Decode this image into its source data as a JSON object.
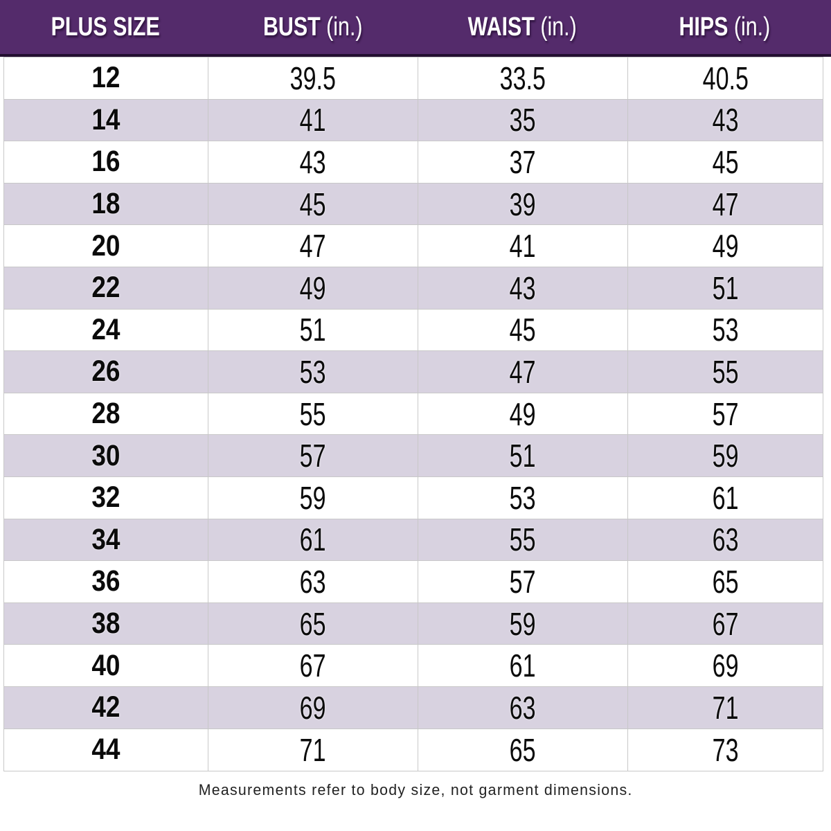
{
  "table": {
    "columns": [
      {
        "label": "PLUS SIZE",
        "unit": ""
      },
      {
        "label": "BUST",
        "unit": "(in.)"
      },
      {
        "label": "WAIST",
        "unit": "(in.)"
      },
      {
        "label": "HIPS",
        "unit": "(in.)"
      }
    ],
    "rows": [
      {
        "size": "12",
        "bust": "39.5",
        "waist": "33.5",
        "hips": "40.5"
      },
      {
        "size": "14",
        "bust": "41",
        "waist": "35",
        "hips": "43"
      },
      {
        "size": "16",
        "bust": "43",
        "waist": "37",
        "hips": "45"
      },
      {
        "size": "18",
        "bust": "45",
        "waist": "39",
        "hips": "47"
      },
      {
        "size": "20",
        "bust": "47",
        "waist": "41",
        "hips": "49"
      },
      {
        "size": "22",
        "bust": "49",
        "waist": "43",
        "hips": "51"
      },
      {
        "size": "24",
        "bust": "51",
        "waist": "45",
        "hips": "53"
      },
      {
        "size": "26",
        "bust": "53",
        "waist": "47",
        "hips": "55"
      },
      {
        "size": "28",
        "bust": "55",
        "waist": "49",
        "hips": "57"
      },
      {
        "size": "30",
        "bust": "57",
        "waist": "51",
        "hips": "59"
      },
      {
        "size": "32",
        "bust": "59",
        "waist": "53",
        "hips": "61"
      },
      {
        "size": "34",
        "bust": "61",
        "waist": "55",
        "hips": "63"
      },
      {
        "size": "36",
        "bust": "63",
        "waist": "57",
        "hips": "65"
      },
      {
        "size": "38",
        "bust": "65",
        "waist": "59",
        "hips": "67"
      },
      {
        "size": "40",
        "bust": "67",
        "waist": "61",
        "hips": "69"
      },
      {
        "size": "42",
        "bust": "69",
        "waist": "63",
        "hips": "71"
      },
      {
        "size": "44",
        "bust": "71",
        "waist": "65",
        "hips": "73"
      }
    ]
  },
  "footnote": "Measurements refer to body size, not garment dimensions.",
  "colors": {
    "header_bg": "#542b6b",
    "header_underline": "#241031",
    "header_text": "#ffffff",
    "row_alt_bg": "#d8d2e0",
    "row_bg": "#ffffff",
    "grid_line": "#c8c8c8",
    "body_text": "#0b0b0b"
  },
  "chart_data": {
    "type": "table",
    "title": "Plus size measurement chart",
    "columns": [
      "PLUS SIZE",
      "BUST (in.)",
      "WAIST (in.)",
      "HIPS (in.)"
    ],
    "rows": [
      [
        "12",
        "39.5",
        "33.5",
        "40.5"
      ],
      [
        "14",
        "41",
        "35",
        "43"
      ],
      [
        "16",
        "43",
        "37",
        "45"
      ],
      [
        "18",
        "45",
        "39",
        "47"
      ],
      [
        "20",
        "47",
        "41",
        "49"
      ],
      [
        "22",
        "49",
        "43",
        "51"
      ],
      [
        "24",
        "51",
        "45",
        "53"
      ],
      [
        "26",
        "53",
        "47",
        "55"
      ],
      [
        "28",
        "55",
        "49",
        "57"
      ],
      [
        "30",
        "57",
        "51",
        "59"
      ],
      [
        "32",
        "59",
        "53",
        "61"
      ],
      [
        "34",
        "61",
        "55",
        "63"
      ],
      [
        "36",
        "63",
        "57",
        "65"
      ],
      [
        "38",
        "65",
        "59",
        "67"
      ],
      [
        "40",
        "67",
        "61",
        "69"
      ],
      [
        "42",
        "69",
        "63",
        "71"
      ],
      [
        "44",
        "71",
        "65",
        "73"
      ]
    ],
    "footnote": "Measurements refer to body size, not garment dimensions."
  }
}
